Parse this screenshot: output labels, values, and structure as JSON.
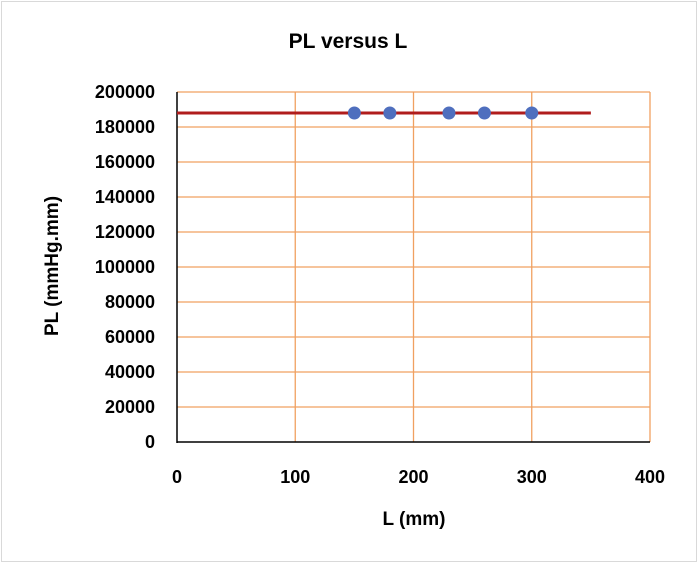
{
  "chart_data": {
    "type": "scatter",
    "title": "PL versus L",
    "xlabel": "L (mm)",
    "ylabel": "PL (mmHg.mm)",
    "xlim": [
      0,
      400
    ],
    "ylim": [
      0,
      200000
    ],
    "x_ticks": [
      "0",
      "100",
      "200",
      "300",
      "400"
    ],
    "y_ticks": [
      "0",
      "20000",
      "40000",
      "60000",
      "80000",
      "100000",
      "120000",
      "140000",
      "160000",
      "180000",
      "200000"
    ],
    "grid": true,
    "legend": "none",
    "series": [
      {
        "type": "scatter",
        "points": [
          {
            "x": 150,
            "y": 188000
          },
          {
            "x": 180,
            "y": 188000
          },
          {
            "x": 230,
            "y": 188000
          },
          {
            "x": 260,
            "y": 188000
          },
          {
            "x": 300,
            "y": 188000
          }
        ]
      },
      {
        "type": "line",
        "points": [
          {
            "x": 0,
            "y": 188000
          },
          {
            "x": 350,
            "y": 188000
          }
        ]
      }
    ],
    "colors": {
      "markers": "#4F6FBE",
      "trendline": "#B01C1C",
      "grid": "#F0A060",
      "axis": "#000000"
    }
  }
}
